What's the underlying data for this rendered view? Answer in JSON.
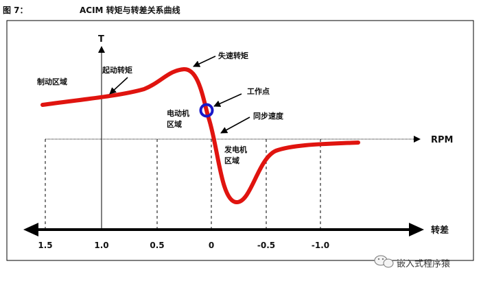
{
  "figure": {
    "number_label": "图 7：",
    "title": "ACIM 转矩与转差关系曲线"
  },
  "axes": {
    "y_name": "T",
    "rpm_name": "RPM",
    "slip_name": "转差",
    "slip_ticks": [
      "1.5",
      "1.0",
      "0.5",
      "0",
      "-0.5",
      "-1.0"
    ]
  },
  "annotations": {
    "braking_region": "制动区域",
    "starting_torque": "起动转矩",
    "breakdown_torque": "失速转矩",
    "operating_point": "工作点",
    "motor_region_line1": "电动机",
    "motor_region_line2": "区域",
    "sync_speed": "同步速度",
    "generator_region_line1": "发电机",
    "generator_region_line2": "区域"
  },
  "watermark": {
    "icon": "wechat-icon",
    "text": "嵌入式程序猿"
  },
  "colors": {
    "curve": "#e0140f",
    "operating_point": "#1a18c8",
    "axis": "#000000"
  }
}
